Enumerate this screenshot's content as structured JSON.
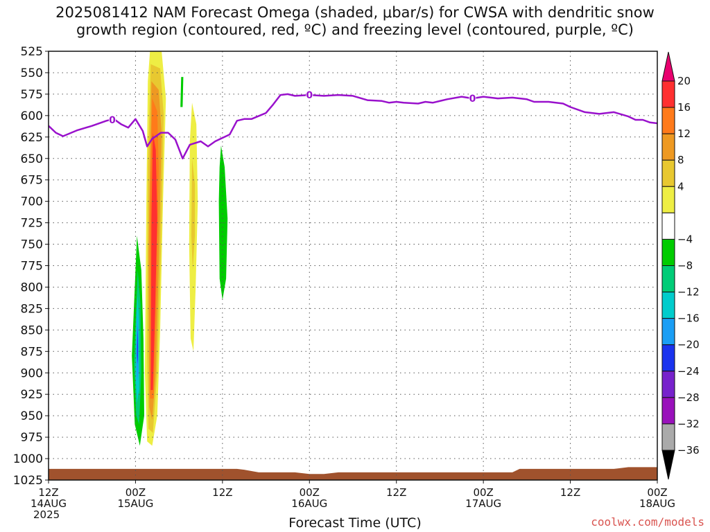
{
  "title_lines": [
    "2025081412 NAM Forecast Omega (shaded, μbar/s) for CWSA with dendritic snow",
    "growth region (contoured, red, ºC) and freezing level (contoured, purple, ºC)"
  ],
  "credit": "coolwx.com/models",
  "chart_data": {
    "type": "heatmap",
    "xlabel": "Forecast Time (UTC)",
    "ylabel": "",
    "x_unit": "forecast hour from 2025-08-14 12Z",
    "x_range": [
      0,
      84
    ],
    "y_range": [
      1025,
      525
    ],
    "y_ticks": [
      525,
      550,
      575,
      600,
      625,
      650,
      675,
      700,
      725,
      750,
      775,
      800,
      825,
      850,
      875,
      900,
      925,
      950,
      975,
      1000,
      1025
    ],
    "x_ticks": [
      {
        "h": 0,
        "lines": [
          "12Z",
          "14AUG",
          "2025"
        ]
      },
      {
        "h": 12,
        "lines": [
          "00Z",
          "15AUG"
        ]
      },
      {
        "h": 24,
        "lines": [
          "12Z"
        ]
      },
      {
        "h": 36,
        "lines": [
          "00Z",
          "16AUG"
        ]
      },
      {
        "h": 48,
        "lines": [
          "12Z"
        ]
      },
      {
        "h": 60,
        "lines": [
          "00Z",
          "17AUG"
        ]
      },
      {
        "h": 72,
        "lines": [
          "12Z"
        ]
      },
      {
        "h": 84,
        "lines": [
          "00Z",
          "18AUG"
        ]
      }
    ],
    "colorbar": {
      "labels": [
        "20",
        "16",
        "12",
        "8",
        "4",
        "−4",
        "−8",
        "−12",
        "−16",
        "−20",
        "−24",
        "−28",
        "−32",
        "−36"
      ],
      "colors": [
        "#e8006e",
        "#ff3030",
        "#ff7a1a",
        "#ee9922",
        "#e8c830",
        "#eeee44",
        "#ffffff",
        "#00cc00",
        "#00cc77",
        "#00cccc",
        "#1a9ef5",
        "#1a33ee",
        "#7722cc",
        "#9911bb",
        "#aaaaaa",
        "#000000"
      ]
    },
    "freezing_level": {
      "color": "#9911cc",
      "contour_label": "0",
      "label_points": [
        [
          8.8,
          605
        ],
        [
          36,
          576
        ],
        [
          58.5,
          580
        ]
      ],
      "points": [
        [
          0,
          612
        ],
        [
          1,
          620
        ],
        [
          2,
          624
        ],
        [
          4,
          617
        ],
        [
          6,
          612
        ],
        [
          8,
          606
        ],
        [
          9,
          604
        ],
        [
          10,
          610
        ],
        [
          11,
          614
        ],
        [
          12,
          604
        ],
        [
          13,
          618
        ],
        [
          13.6,
          636
        ],
        [
          14.3,
          627
        ],
        [
          15.5,
          620
        ],
        [
          16.5,
          620
        ],
        [
          17.5,
          628
        ],
        [
          18.5,
          650
        ],
        [
          19.5,
          634
        ],
        [
          21,
          630
        ],
        [
          22,
          636
        ],
        [
          23,
          630
        ],
        [
          25,
          622
        ],
        [
          26,
          606
        ],
        [
          27,
          604
        ],
        [
          28,
          604
        ],
        [
          30,
          597
        ],
        [
          31,
          587
        ],
        [
          32,
          576
        ],
        [
          33,
          575
        ],
        [
          34,
          577
        ],
        [
          36,
          576
        ],
        [
          38,
          577
        ],
        [
          40,
          576
        ],
        [
          42,
          577
        ],
        [
          44,
          582
        ],
        [
          46,
          583
        ],
        [
          47,
          585
        ],
        [
          48,
          584
        ],
        [
          49,
          585
        ],
        [
          51,
          586
        ],
        [
          52,
          584
        ],
        [
          53,
          585
        ],
        [
          55,
          581
        ],
        [
          57,
          578
        ],
        [
          58.5,
          580
        ],
        [
          60,
          578
        ],
        [
          62,
          580
        ],
        [
          64,
          579
        ],
        [
          66,
          581
        ],
        [
          67,
          584
        ],
        [
          69,
          584
        ],
        [
          71,
          586
        ],
        [
          72,
          590
        ],
        [
          74,
          596
        ],
        [
          76,
          598
        ],
        [
          77,
          597
        ],
        [
          78,
          596
        ],
        [
          80,
          601
        ],
        [
          81,
          605
        ],
        [
          82,
          605
        ],
        [
          83,
          608
        ],
        [
          84,
          609
        ]
      ]
    },
    "omega_areas": [
      {
        "level": 4,
        "color": "#eeee44",
        "points": [
          [
            14.0,
            525
          ],
          [
            15.6,
            525
          ],
          [
            16.2,
            580
          ],
          [
            15.8,
            700
          ],
          [
            15.4,
            850
          ],
          [
            15.0,
            950
          ],
          [
            14.3,
            985
          ],
          [
            13.6,
            980
          ],
          [
            13.3,
            900
          ],
          [
            13.5,
            700
          ],
          [
            13.7,
            560
          ]
        ]
      },
      {
        "level": 8,
        "color": "#e8c830",
        "points": [
          [
            14.1,
            540
          ],
          [
            15.4,
            545
          ],
          [
            15.9,
            600
          ],
          [
            15.5,
            760
          ],
          [
            15.0,
            900
          ],
          [
            14.4,
            970
          ],
          [
            13.8,
            965
          ],
          [
            13.6,
            880
          ],
          [
            13.7,
            660
          ]
        ]
      },
      {
        "level": 12,
        "color": "#ee9922",
        "points": [
          [
            14.2,
            560
          ],
          [
            15.2,
            570
          ],
          [
            15.6,
            620
          ],
          [
            15.2,
            780
          ],
          [
            14.8,
            900
          ],
          [
            14.3,
            955
          ],
          [
            13.9,
            940
          ],
          [
            13.8,
            760
          ]
        ]
      },
      {
        "level": 16,
        "color": "#ff7a1a",
        "points": [
          [
            14.3,
            580
          ],
          [
            15.0,
            595
          ],
          [
            15.2,
            660
          ],
          [
            14.9,
            800
          ],
          [
            14.5,
            930
          ],
          [
            14.0,
            930
          ],
          [
            14.0,
            700
          ]
        ]
      },
      {
        "level": 20,
        "color": "#ff3030",
        "points": [
          [
            14.4,
            620
          ],
          [
            14.8,
            640
          ],
          [
            15.0,
            720
          ],
          [
            14.7,
            830
          ],
          [
            14.4,
            920
          ],
          [
            14.1,
            920
          ],
          [
            14.2,
            720
          ]
        ]
      },
      {
        "level": 4,
        "color": "#eeee44",
        "points": [
          [
            19.8,
            585
          ],
          [
            20.4,
            610
          ],
          [
            20.6,
            700
          ],
          [
            20.3,
            800
          ],
          [
            20.0,
            875
          ],
          [
            19.6,
            860
          ],
          [
            19.4,
            750
          ],
          [
            19.5,
            630
          ]
        ]
      },
      {
        "level": 8,
        "color": "#e8c830",
        "points": [
          [
            19.8,
            650
          ],
          [
            20.2,
            680
          ],
          [
            20.2,
            740
          ],
          [
            19.9,
            780
          ],
          [
            19.7,
            740
          ]
        ]
      },
      {
        "level": -4,
        "color": "#00cc00",
        "points": [
          [
            18.3,
            555
          ],
          [
            18.6,
            555
          ],
          [
            18.5,
            590
          ],
          [
            18.2,
            590
          ]
        ]
      },
      {
        "level": -4,
        "color": "#00cc00",
        "points": [
          [
            23.8,
            635
          ],
          [
            24.3,
            660
          ],
          [
            24.7,
            720
          ],
          [
            24.5,
            790
          ],
          [
            24.0,
            815
          ],
          [
            23.6,
            790
          ],
          [
            23.5,
            700
          ],
          [
            23.6,
            660
          ]
        ]
      },
      {
        "level": -4,
        "color": "#00cc00",
        "points": [
          [
            12.2,
            740
          ],
          [
            12.8,
            780
          ],
          [
            13.1,
            860
          ],
          [
            13.2,
            950
          ],
          [
            12.6,
            985
          ],
          [
            11.9,
            960
          ],
          [
            11.5,
            880
          ],
          [
            11.9,
            800
          ]
        ]
      },
      {
        "level": -8,
        "color": "#00cc77",
        "points": [
          [
            12.3,
            780
          ],
          [
            12.7,
            820
          ],
          [
            12.8,
            900
          ],
          [
            12.5,
            960
          ],
          [
            12.1,
            950
          ],
          [
            11.8,
            890
          ],
          [
            12.1,
            820
          ]
        ]
      },
      {
        "level": -12,
        "color": "#00cccc",
        "points": [
          [
            12.3,
            810
          ],
          [
            12.5,
            840
          ],
          [
            12.5,
            920
          ],
          [
            12.2,
            935
          ],
          [
            12.0,
            900
          ],
          [
            12.1,
            840
          ]
        ]
      },
      {
        "level": -16,
        "color": "#1a9ef5",
        "points": [
          [
            12.3,
            830
          ],
          [
            12.4,
            860
          ],
          [
            12.4,
            900
          ],
          [
            12.2,
            910
          ],
          [
            12.1,
            870
          ]
        ]
      },
      {
        "level": -20,
        "color": "#1a33ee",
        "points": [
          [
            12.28,
            845
          ],
          [
            12.35,
            870
          ],
          [
            12.3,
            890
          ],
          [
            12.2,
            880
          ]
        ]
      }
    ],
    "terrain": {
      "color": "#a0522d",
      "points": [
        [
          0,
          1012
        ],
        [
          26,
          1012
        ],
        [
          27,
          1013
        ],
        [
          29,
          1016
        ],
        [
          34,
          1016
        ],
        [
          36,
          1018
        ],
        [
          38,
          1018
        ],
        [
          40,
          1016
        ],
        [
          58,
          1016
        ],
        [
          61,
          1016
        ],
        [
          64,
          1016
        ],
        [
          65,
          1012
        ],
        [
          78,
          1012
        ],
        [
          80,
          1010
        ],
        [
          84,
          1010
        ]
      ]
    }
  }
}
